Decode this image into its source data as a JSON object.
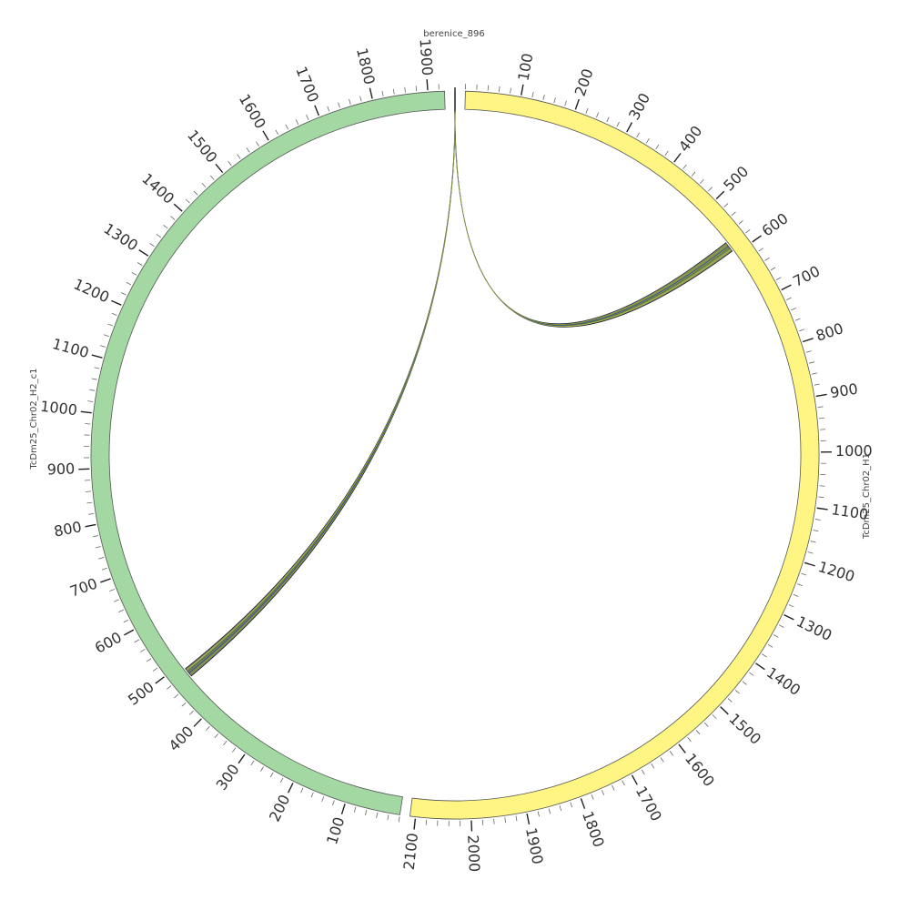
{
  "chart_data": {
    "type": "circos",
    "minor_tick_interval": 20,
    "segments": [
      {
        "name": "berenice_896",
        "length": 0.896,
        "color": "#ffffff",
        "ticks": []
      },
      {
        "name": "TcDm25_Chr02_H1",
        "length": 2110,
        "color": "#fff583",
        "ticks": [
          100,
          200,
          300,
          400,
          500,
          600,
          700,
          800,
          900,
          1000,
          1100,
          1200,
          1300,
          1400,
          1500,
          1600,
          1700,
          1800,
          1900,
          2000,
          2100
        ]
      },
      {
        "name": "TcDm25_Chr02_H2_c1",
        "length": 1930,
        "color": "#a3d8a3",
        "ticks": [
          100,
          200,
          300,
          400,
          500,
          600,
          700,
          800,
          900,
          1000,
          1100,
          1200,
          1300,
          1400,
          1500,
          1600,
          1700,
          1800,
          1900
        ]
      }
    ],
    "links": [
      {
        "source": 0,
        "source_range": [
          0,
          0.45
        ],
        "target": 1,
        "target_range": [
          572,
          592
        ],
        "color": "#5a6b1e"
      },
      {
        "source": 0,
        "source_range": [
          0.45,
          0.896
        ],
        "target": 2,
        "target_range": [
          470,
          488
        ],
        "color": "#4b5a2a"
      }
    ]
  }
}
